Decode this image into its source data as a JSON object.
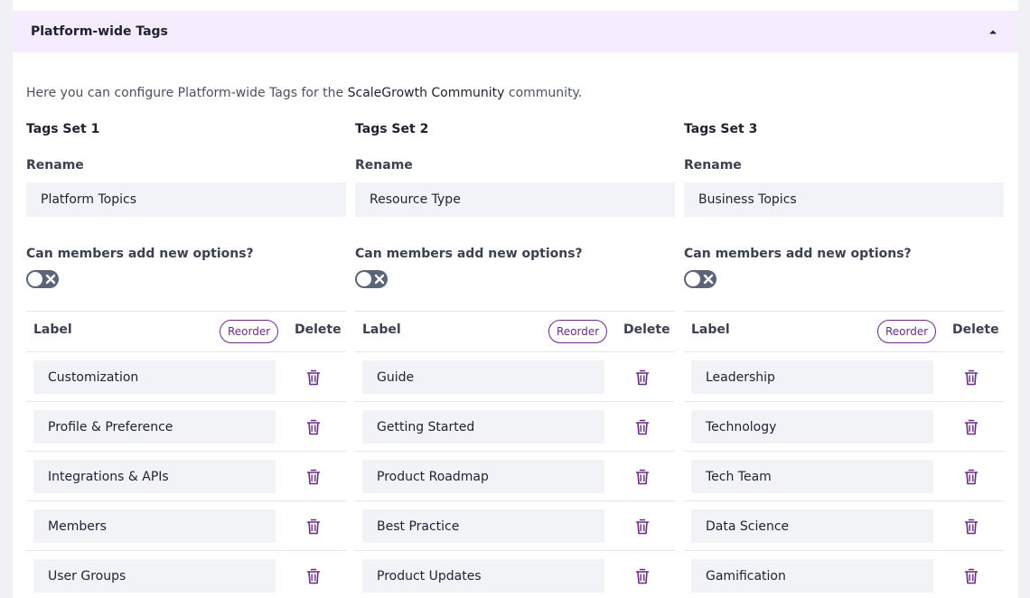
{
  "header": {
    "title": "Platform-wide Tags",
    "collapse_icon": "caret-up-icon"
  },
  "intro": {
    "prefix": "Here you can configure Platform-wide Tags for the",
    "community": "ScaleGrowth Community",
    "suffix": "community."
  },
  "colors": {
    "accent": "#6a2d86",
    "header_bg": "#f5ecfd",
    "toggle_off": "#5b6478",
    "input_bg": "#f2f3f7"
  },
  "tag_sets": [
    {
      "title": "Tags Set 1",
      "rename_label": "Rename",
      "rename_value": "Platform Topics",
      "can_add_label": "Can members add new options?",
      "can_add_enabled": false,
      "table": {
        "label_header": "Label",
        "reorder_label": "Reorder",
        "delete_header": "Delete"
      },
      "options": [
        "Customization",
        "Profile & Preference",
        "Integrations & APIs",
        "Members",
        "User Groups"
      ]
    },
    {
      "title": "Tags Set 2",
      "rename_label": "Rename",
      "rename_value": "Resource Type",
      "can_add_label": "Can members add new options?",
      "can_add_enabled": false,
      "table": {
        "label_header": "Label",
        "reorder_label": "Reorder",
        "delete_header": "Delete"
      },
      "options": [
        "Guide",
        "Getting Started",
        "Product Roadmap",
        "Best Practice",
        "Product Updates"
      ]
    },
    {
      "title": "Tags Set 3",
      "rename_label": "Rename",
      "rename_value": "Business Topics",
      "can_add_label": "Can members add new options?",
      "can_add_enabled": false,
      "table": {
        "label_header": "Label",
        "reorder_label": "Reorder",
        "delete_header": "Delete"
      },
      "options": [
        "Leadership",
        "Technology",
        "Tech Team",
        "Data Science",
        "Gamification"
      ]
    }
  ]
}
